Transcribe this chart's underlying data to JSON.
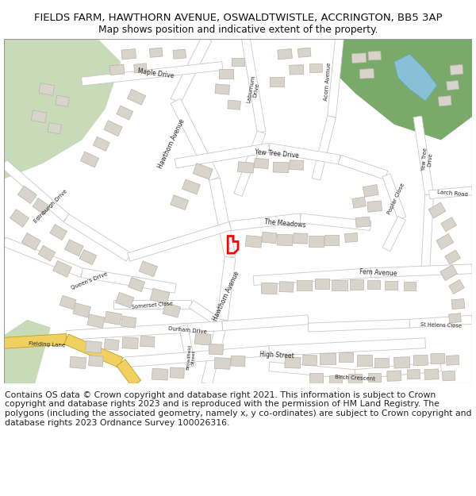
{
  "title_line1": "FIELDS FARM, HAWTHORN AVENUE, OSWALDTWISTLE, ACCRINGTON, BB5 3AP",
  "title_line2": "Map shows position and indicative extent of the property.",
  "title_fontsize": 9.5,
  "subtitle_fontsize": 8.8,
  "copyright_text": "Contains OS data © Crown copyright and database right 2021. This information is subject to Crown copyright and database rights 2023 and is reproduced with the permission of HM Land Registry. The polygons (including the associated geometry, namely x, y co-ordinates) are subject to Crown copyright and database rights 2023 Ordnance Survey 100026316.",
  "copyright_fontsize": 7.8,
  "map_bg": "#f8f8f8",
  "road_color": "#ffffff",
  "road_outline": "#c8c8c8",
  "building_color": "#d8d4cc",
  "building_outline": "#b8b4ac",
  "green_color_light": "#c8dbb8",
  "green_color_dark": "#7aaa6a",
  "highlight_color": "#ff0000",
  "road_yellow": "#f0d060",
  "water_color": "#88c0d8",
  "text_color": "#333333",
  "fig_width": 6.0,
  "fig_height": 6.25
}
